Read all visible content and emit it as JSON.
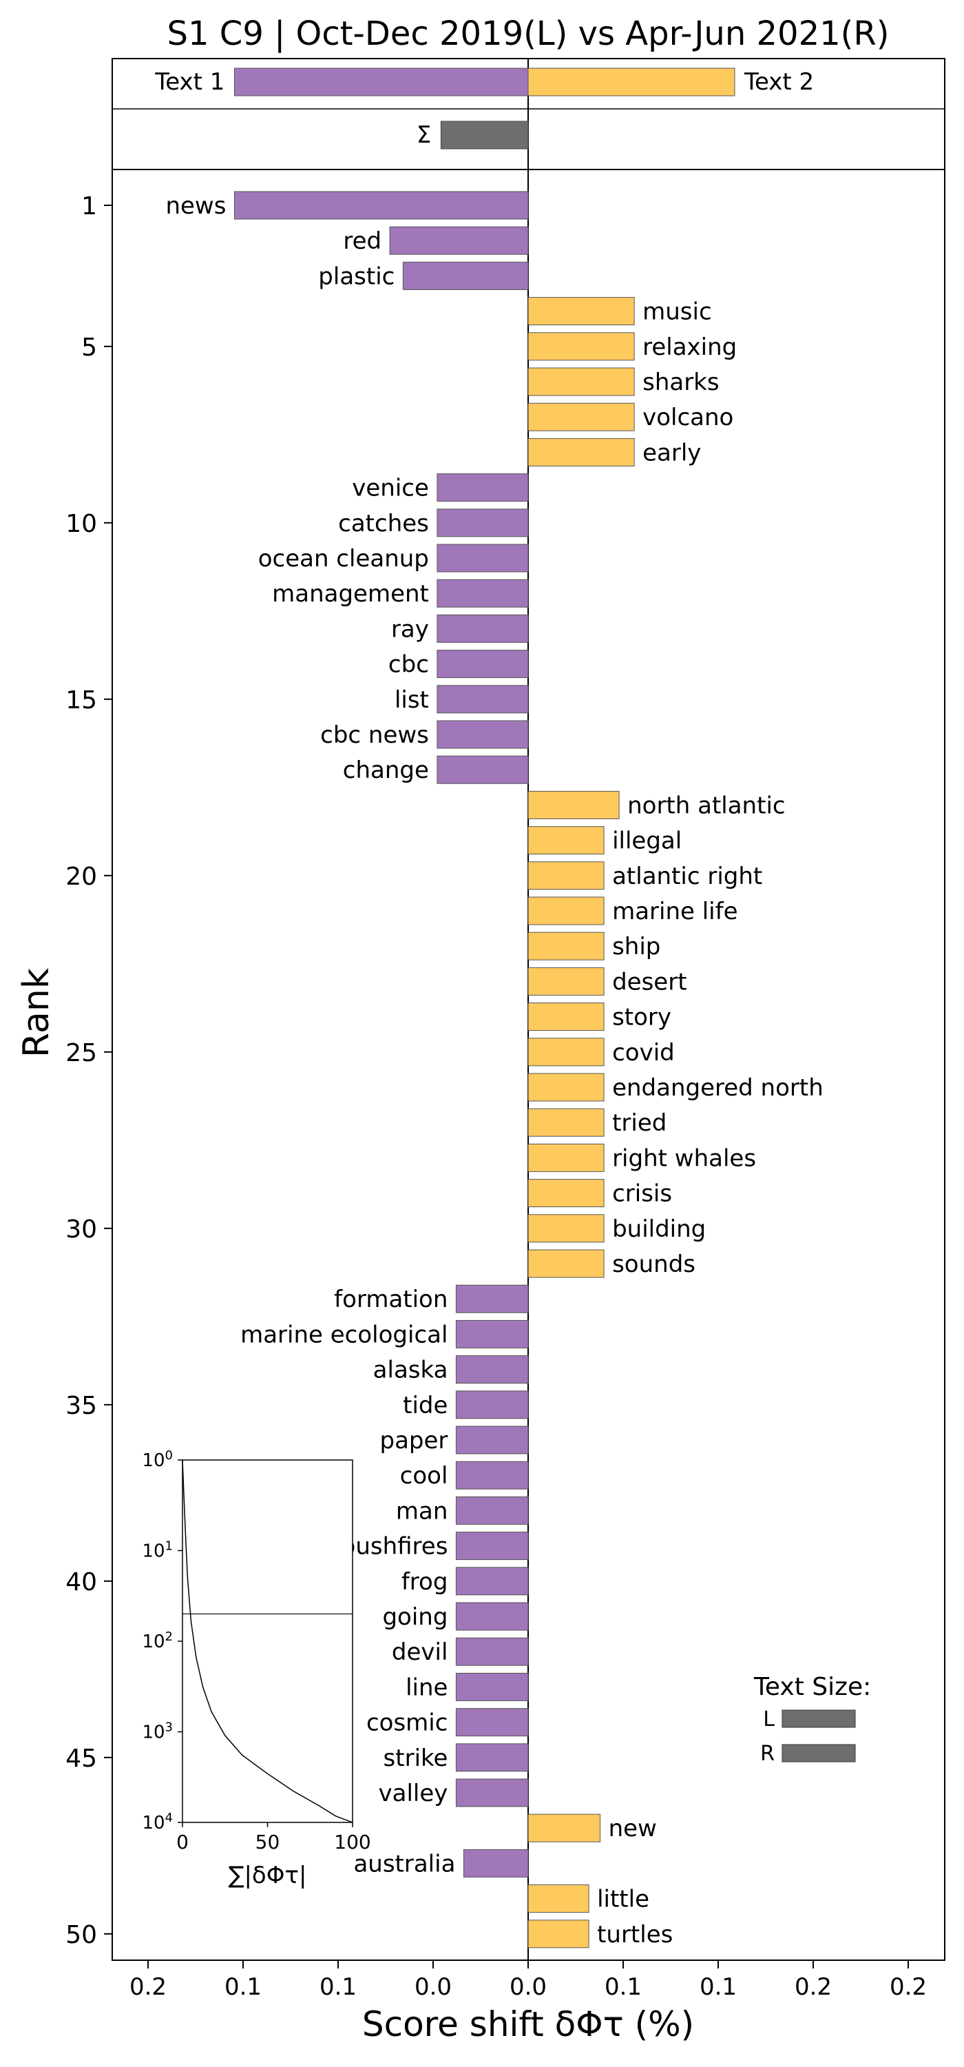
{
  "chart_data": {
    "type": "bar",
    "orientation": "horizontal",
    "title": "S1 C9 | Oct-Dec 2019(L) vs Apr-Jun 2021(R)",
    "xlabel": "Score shift δΦτ (%)",
    "ylabel": "Rank",
    "xticks": [
      "0.2",
      "0.1",
      "0.1",
      "0.0",
      "0.0",
      "0.1",
      "0.1",
      "0.2",
      "0.2"
    ],
    "xlim": [
      -0.22,
      0.22
    ],
    "yticks": [
      1,
      5,
      10,
      15,
      20,
      25,
      30,
      35,
      40,
      45,
      50
    ],
    "header": {
      "left_label": "Text 1",
      "right_label": "Text 2",
      "left_value": -0.155,
      "right_value": 0.109,
      "sum_label": "Σ",
      "sum_value": -0.046
    },
    "colors": {
      "left": "#a077b9",
      "right": "#fec95d",
      "sum": "#6e6e6e"
    },
    "series": [
      {
        "rank": 1,
        "word": "news",
        "value": -0.155
      },
      {
        "rank": 2,
        "word": "red",
        "value": -0.073
      },
      {
        "rank": 3,
        "word": "plastic",
        "value": -0.066
      },
      {
        "rank": 4,
        "word": "music",
        "value": 0.056
      },
      {
        "rank": 5,
        "word": "relaxing",
        "value": 0.056
      },
      {
        "rank": 6,
        "word": "sharks",
        "value": 0.056
      },
      {
        "rank": 7,
        "word": "volcano",
        "value": 0.056
      },
      {
        "rank": 8,
        "word": "early",
        "value": 0.056
      },
      {
        "rank": 9,
        "word": "venice",
        "value": -0.048
      },
      {
        "rank": 10,
        "word": "catches",
        "value": -0.048
      },
      {
        "rank": 11,
        "word": "ocean cleanup",
        "value": -0.048
      },
      {
        "rank": 12,
        "word": "management",
        "value": -0.048
      },
      {
        "rank": 13,
        "word": "ray",
        "value": -0.048
      },
      {
        "rank": 14,
        "word": "cbc",
        "value": -0.048
      },
      {
        "rank": 15,
        "word": "list",
        "value": -0.048
      },
      {
        "rank": 16,
        "word": "cbc news",
        "value": -0.048
      },
      {
        "rank": 17,
        "word": "change",
        "value": -0.048
      },
      {
        "rank": 18,
        "word": "north atlantic",
        "value": 0.048
      },
      {
        "rank": 19,
        "word": "illegal",
        "value": 0.04
      },
      {
        "rank": 20,
        "word": "atlantic right",
        "value": 0.04
      },
      {
        "rank": 21,
        "word": "marine life",
        "value": 0.04
      },
      {
        "rank": 22,
        "word": "ship",
        "value": 0.04
      },
      {
        "rank": 23,
        "word": "desert",
        "value": 0.04
      },
      {
        "rank": 24,
        "word": "story",
        "value": 0.04
      },
      {
        "rank": 25,
        "word": "covid",
        "value": 0.04
      },
      {
        "rank": 26,
        "word": "endangered north",
        "value": 0.04
      },
      {
        "rank": 27,
        "word": "tried",
        "value": 0.04
      },
      {
        "rank": 28,
        "word": "right whales",
        "value": 0.04
      },
      {
        "rank": 29,
        "word": "crisis",
        "value": 0.04
      },
      {
        "rank": 30,
        "word": "building",
        "value": 0.04
      },
      {
        "rank": 31,
        "word": "sounds",
        "value": 0.04
      },
      {
        "rank": 32,
        "word": "formation",
        "value": -0.038
      },
      {
        "rank": 33,
        "word": "marine ecological",
        "value": -0.038
      },
      {
        "rank": 34,
        "word": "alaska",
        "value": -0.038
      },
      {
        "rank": 35,
        "word": "tide",
        "value": -0.038
      },
      {
        "rank": 36,
        "word": "paper",
        "value": -0.038
      },
      {
        "rank": 37,
        "word": "cool",
        "value": -0.038
      },
      {
        "rank": 38,
        "word": "man",
        "value": -0.038
      },
      {
        "rank": 39,
        "word": "bushfires",
        "value": -0.038
      },
      {
        "rank": 40,
        "word": "frog",
        "value": -0.038
      },
      {
        "rank": 41,
        "word": "going",
        "value": -0.038
      },
      {
        "rank": 42,
        "word": "devil",
        "value": -0.038
      },
      {
        "rank": 43,
        "word": "line",
        "value": -0.038
      },
      {
        "rank": 44,
        "word": "cosmic",
        "value": -0.038
      },
      {
        "rank": 45,
        "word": "strike",
        "value": -0.038
      },
      {
        "rank": 46,
        "word": "valley",
        "value": -0.038
      },
      {
        "rank": 47,
        "word": "new",
        "value": 0.038
      },
      {
        "rank": 48,
        "word": "australia",
        "value": -0.034
      },
      {
        "rank": 49,
        "word": "little",
        "value": 0.032
      },
      {
        "rank": 50,
        "word": "turtles",
        "value": 0.032
      }
    ],
    "inset": {
      "xlabel": "∑|δΦτ|",
      "xticks": [
        0,
        50,
        100
      ],
      "xlim": [
        0,
        100
      ],
      "yscale": "log",
      "yticks": [
        "10^0",
        "10^1",
        "10^2",
        "10^3",
        "10^4"
      ],
      "hline_rank": 50,
      "curve": [
        [
          0,
          1
        ],
        [
          1,
          3
        ],
        [
          2,
          8
        ],
        [
          3,
          20
        ],
        [
          5,
          60
        ],
        [
          8,
          150
        ],
        [
          12,
          320
        ],
        [
          17,
          600
        ],
        [
          25,
          1100
        ],
        [
          35,
          1800
        ],
        [
          50,
          2900
        ],
        [
          65,
          4500
        ],
        [
          80,
          6500
        ],
        [
          90,
          8500
        ],
        [
          100,
          10000
        ]
      ]
    },
    "legend": {
      "title": "Text Size:",
      "items": [
        {
          "label": "L",
          "size": 1.0
        },
        {
          "label": "R",
          "size": 1.0
        }
      ],
      "placement": "lower-right"
    }
  }
}
